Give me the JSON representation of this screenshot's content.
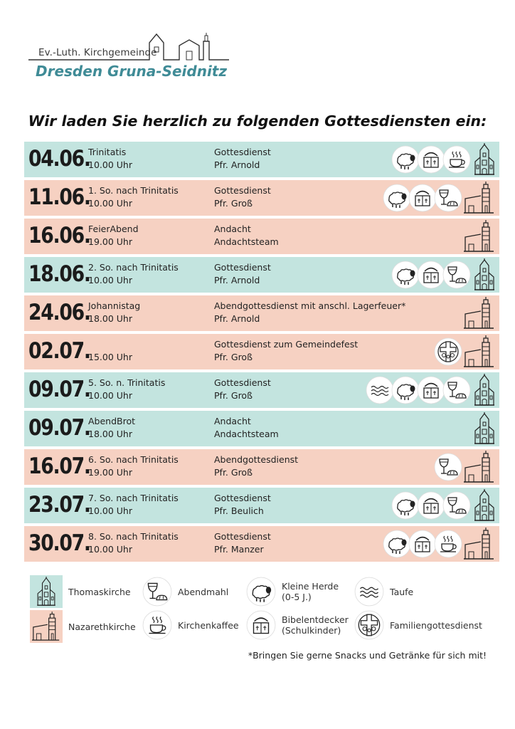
{
  "header": {
    "org_small": "Ev.-Luth. Kirchgemeinde",
    "org_name": "Dresden Gruna-Seidnitz"
  },
  "headline": "Wir laden Sie herzlich zu folgenden Gottesdiensten ein:",
  "services": [
    {
      "date": "04.06.",
      "occasion": "Trinitatis",
      "time": "10.00 Uhr",
      "type": "Gottesdienst",
      "leader": "Pfr. Arnold",
      "church": "Thomaskirche",
      "icons": [
        "kleine-herde",
        "bibelentdecker",
        "kirchenkaffee"
      ]
    },
    {
      "date": "11.06.",
      "occasion": "1. So. nach Trinitatis",
      "time": "10.00 Uhr",
      "type": "Gottesdienst",
      "leader": "Pfr. Groß",
      "church": "Nazarethkirche",
      "icons": [
        "kleine-herde",
        "bibelentdecker",
        "abendmahl"
      ]
    },
    {
      "date": "16.06.",
      "occasion": "FeierAbend",
      "time": "19.00 Uhr",
      "type": "Andacht",
      "leader": "Andachtsteam",
      "church": "Nazarethkirche",
      "icons": []
    },
    {
      "date": "18.06.",
      "occasion": "2. So. nach Trinitatis",
      "time": "10.00 Uhr",
      "type": "Gottesdienst",
      "leader": "Pfr. Arnold",
      "church": "Thomaskirche",
      "icons": [
        "kleine-herde",
        "bibelentdecker",
        "abendmahl"
      ]
    },
    {
      "date": "24.06.",
      "occasion": "Johannistag",
      "time": "18.00 Uhr",
      "type": "Abendgottesdienst mit anschl. Lagerfeuer*",
      "leader": "Pfr. Arnold",
      "church": "Nazarethkirche",
      "icons": []
    },
    {
      "date": "02.07.",
      "occasion": "",
      "time": "15.00 Uhr",
      "type": "Gottesdienst zum Gemeindefest",
      "leader": "Pfr. Groß",
      "church": "Nazarethkirche",
      "icons": [
        "familiengottesdienst"
      ]
    },
    {
      "date": "09.07.",
      "occasion": "5. So. n. Trinitatis",
      "time": "10.00 Uhr",
      "type": "Gottesdienst",
      "leader": "Pfr. Groß",
      "church": "Thomaskirche",
      "icons": [
        "taufe",
        "kleine-herde",
        "bibelentdecker",
        "abendmahl"
      ]
    },
    {
      "date": "09.07.",
      "occasion": "AbendBrot",
      "time": "18.00 Uhr",
      "type": "Andacht",
      "leader": "Andachtsteam",
      "church": "Thomaskirche",
      "icons": []
    },
    {
      "date": "16.07.",
      "occasion": "6. So. nach Trinitatis",
      "time": "19.00 Uhr",
      "type": "Abendgottesdienst",
      "leader": "Pfr. Groß",
      "church": "Nazarethkirche",
      "icons": [
        "abendmahl"
      ]
    },
    {
      "date": "23.07.",
      "occasion": "7. So. nach Trinitatis",
      "time": "10.00 Uhr",
      "type": "Gottesdienst",
      "leader": "Pfr. Beulich",
      "church": "Thomaskirche",
      "icons": [
        "kleine-herde",
        "bibelentdecker",
        "abendmahl"
      ]
    },
    {
      "date": "30.07.",
      "occasion": "8. So. nach Trinitatis",
      "time": "10.00 Uhr",
      "type": "Gottesdienst",
      "leader": "Pfr. Manzer",
      "church": "Nazarethkirche",
      "icons": [
        "kleine-herde",
        "bibelentdecker",
        "kirchenkaffee"
      ]
    }
  ],
  "legend": {
    "thomaskirche": "Thomaskirche",
    "nazarethkirche": "Nazarethkirche",
    "abendmahl": "Abendmahl",
    "kirchenkaffee": "Kirchenkaffee",
    "kleine_herde_1": "Kleine Herde",
    "kleine_herde_2": "(0-5 J.)",
    "bibelentdecker_1": "Bibelentdecker",
    "bibelentdecker_2": "(Schulkinder)",
    "taufe": "Taufe",
    "familiengottesdienst": "Familiengottesdienst"
  },
  "footnote": "*Bringen Sie gerne Snacks und Getränke für sich mit!",
  "colors": {
    "thomaskirche_bg": "#c3e4df",
    "nazarethkirche_bg": "#f6d1c2",
    "brand": "#3f8b96"
  }
}
